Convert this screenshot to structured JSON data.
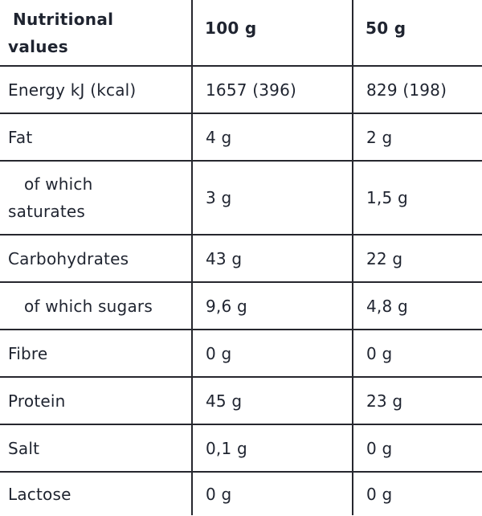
{
  "header": {
    "label": "Nutritional values",
    "label_line1": "Nutritional",
    "label_line2": "values",
    "col1": "100 g",
    "col2": "50 g"
  },
  "rows": [
    {
      "name": "Energy kJ (kcal)",
      "per100": "1657 (396)",
      "per50": "829 (198)"
    },
    {
      "name": "Fat",
      "per100": "4 g",
      "per50": "2 g"
    },
    {
      "name_line1": "of which",
      "name_line2": "saturates",
      "per100": "3 g",
      "per50": "1,5 g"
    },
    {
      "name": "Carbohydrates",
      "per100": "43 g",
      "per50": "22 g"
    },
    {
      "name": "of which sugars",
      "per100": "9,6 g",
      "per50": "4,8 g"
    },
    {
      "name": "Fibre",
      "per100": "0 g",
      "per50": "0 g"
    },
    {
      "name": "Protein",
      "per100": "45 g",
      "per50": "23 g"
    },
    {
      "name": "Salt",
      "per100": "0,1 g",
      "per50": "0 g"
    },
    {
      "name": "Lactose",
      "per100": "0 g",
      "per50": "0 g"
    }
  ]
}
